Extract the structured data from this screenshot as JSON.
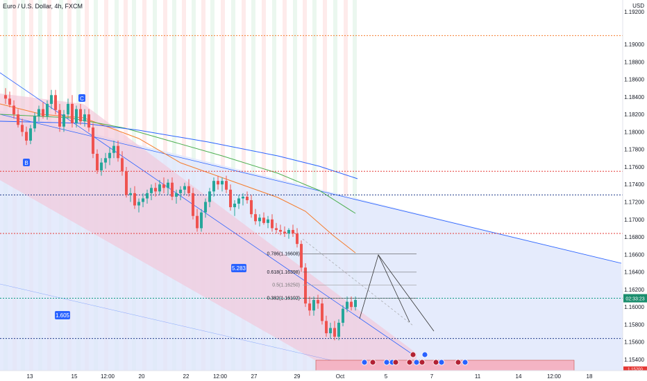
{
  "symbol_title": "Euro / U.S. Dollar, 4h, FXCM",
  "currency": "USD",
  "colors": {
    "bull": "#26a69a",
    "bear": "#ef5350",
    "channel_fill": "#f3c6d8",
    "zone_fill": "#dfe6fb",
    "ema_orange": "#f57c2b",
    "ma_green": "#4caf50",
    "ma_blue": "#2962ff",
    "level_red": "#e53935",
    "level_blue": "#1e3a8a",
    "level_green": "#089981",
    "badge_blue": "#2962ff",
    "price_badge": "#1b8e6e",
    "supply_zone": "#f4b4c4"
  },
  "price_axis": {
    "ticks": [
      "1.19000",
      "1.18800",
      "1.18600",
      "1.18400",
      "1.18200",
      "1.18000",
      "1.17800",
      "1.17600",
      "1.17400",
      "1.17200",
      "1.17000",
      "1.16800",
      "1.16600",
      "1.16400",
      "1.16200",
      "1.16000",
      "1.15800",
      "1.15600",
      "1.15400"
    ],
    "top_partial": "1.19200",
    "current_price": "1.16100",
    "current_price_label": "02:33:23",
    "bottom_partial": "1.15200"
  },
  "time_axis": {
    "ticks": [
      "13",
      "15",
      "12:00",
      "20",
      "22",
      "12:00",
      "27",
      "29",
      "Oct",
      "5",
      "7",
      "11",
      "14",
      "12:00",
      "18"
    ]
  },
  "annotations": {
    "wave_labels": [
      "B",
      "C"
    ],
    "ratio_labels": [
      "5.283",
      "1.605"
    ],
    "fib_levels": [
      {
        "label": "0.786(1.16608)",
        "value": 1.16608
      },
      {
        "label": "0.618(1.16398)",
        "value": 1.16398
      },
      {
        "label": "0.5(1.16250)",
        "value": 1.1625
      },
      {
        "label": "0.382(1.16102)",
        "value": 1.16102
      }
    ]
  },
  "horizontal_levels": [
    {
      "value": 1.191,
      "color": "orange"
    },
    {
      "value": 1.1755,
      "color": "red"
    },
    {
      "value": 1.1728,
      "color": "blue"
    },
    {
      "value": 1.1684,
      "color": "red"
    },
    {
      "value": 1.161,
      "color": "green"
    },
    {
      "value": 1.1564,
      "color": "blue"
    }
  ],
  "event_icons": [
    "flag-eu",
    "flag-us",
    "flag-eu",
    "flag-eu",
    "flag-us",
    "flag-us",
    "flag-eu",
    "flag-us",
    "flag-us",
    "flag-eu",
    "flag-us",
    "flag-eu",
    "flag-us",
    "flag-eu"
  ]
}
